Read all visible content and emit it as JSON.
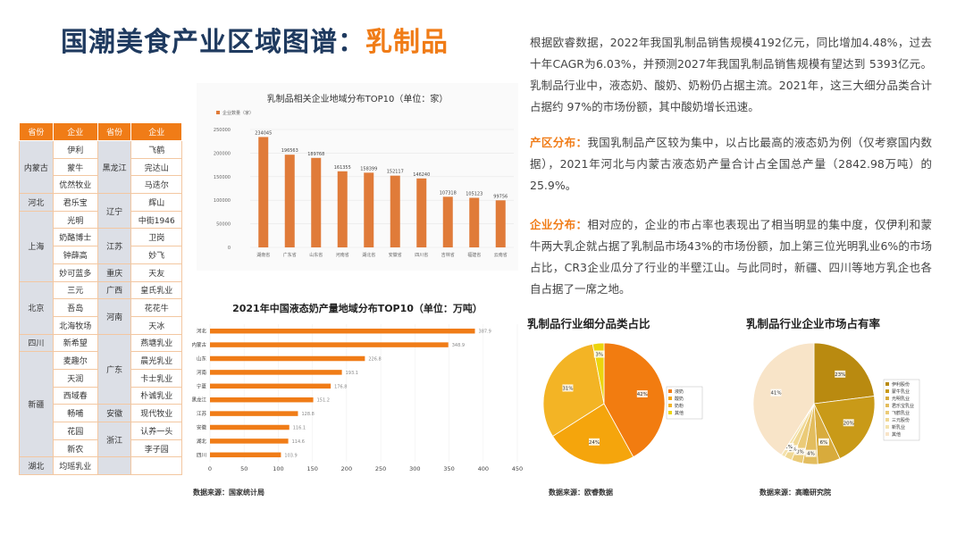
{
  "title": {
    "main": "国潮美食产业区域图谱：",
    "highlight": "乳制品"
  },
  "region_table": {
    "headers": [
      "省份",
      "企业",
      "省份",
      "企业"
    ],
    "left": [
      {
        "province": "内蒙古",
        "companies": [
          "伊利",
          "蒙牛",
          "优然牧业"
        ]
      },
      {
        "province": "河北",
        "companies": [
          "君乐宝"
        ]
      },
      {
        "province": "上海",
        "companies": [
          "光明",
          "奶酪博士",
          "钟薛高",
          "妙可蓝多"
        ]
      },
      {
        "province": "北京",
        "companies": [
          "三元",
          "吾岛",
          "北海牧场"
        ]
      },
      {
        "province": "四川",
        "companies": [
          "新希望"
        ]
      },
      {
        "province": "新疆",
        "companies": [
          "麦趣尔",
          "天润",
          "西域春",
          "畅哺",
          "花园",
          "新农"
        ]
      },
      {
        "province": "湖北",
        "companies": [
          "均瑶乳业"
        ]
      }
    ],
    "right": [
      {
        "province": "黑龙江",
        "companies": [
          "飞鹤",
          "完达山",
          "马迭尔"
        ]
      },
      {
        "province": "辽宁",
        "companies": [
          "辉山",
          "中街1946"
        ]
      },
      {
        "province": "江苏",
        "companies": [
          "卫岗",
          "妙飞"
        ]
      },
      {
        "province": "重庆",
        "companies": [
          "天友"
        ]
      },
      {
        "province": "广西",
        "companies": [
          "皇氏乳业"
        ]
      },
      {
        "province": "河南",
        "companies": [
          "花花牛",
          "天冰"
        ]
      },
      {
        "province": "广东",
        "companies": [
          "燕塘乳业",
          "晨光乳业",
          "卡士乳业",
          "朴诚乳业"
        ]
      },
      {
        "province": "安徽",
        "companies": [
          "现代牧业"
        ]
      },
      {
        "province": "浙江",
        "companies": [
          "认养一头",
          "李子园"
        ]
      },
      {
        "province": "",
        "companies": [
          ""
        ]
      }
    ]
  },
  "chart_data": [
    {
      "type": "bar",
      "title": "乳制品相关企业地域分布TOP10（单位：家）",
      "legend": "企业数量（家）",
      "categories": [
        "湖南省",
        "广东省",
        "山东省",
        "河南省",
        "湖北省",
        "安徽省",
        "四川省",
        "吉林省",
        "福建省",
        "云南省"
      ],
      "values": [
        234045,
        196563,
        189768,
        161355,
        158399,
        152117,
        146240,
        107318,
        105123,
        99756
      ],
      "ylim": [
        0,
        250000
      ],
      "yticks": [
        0,
        50000,
        100000,
        150000,
        200000,
        250000
      ],
      "color": "#e07b39"
    },
    {
      "type": "bar",
      "orientation": "horizontal",
      "title": "2021年中国液态奶产量地域分布TOP10（单位：万吨）",
      "categories": [
        "河北",
        "内蒙古",
        "山东",
        "河南",
        "宁夏",
        "黑龙江",
        "江苏",
        "安徽",
        "湖北",
        "四川"
      ],
      "values": [
        387.9,
        348.9,
        226.8,
        193.1,
        176.8,
        151.2,
        128.8,
        116.1,
        114.6,
        103.9
      ],
      "xlim": [
        0,
        450
      ],
      "xticks": [
        0,
        50,
        100,
        150,
        200,
        250,
        300,
        350,
        400,
        450
      ],
      "color": "#f07c17"
    },
    {
      "type": "pie",
      "title": "乳制品行业细分品类占比",
      "labels": [
        "液奶",
        "酸奶",
        "奶粉",
        "其他"
      ],
      "values": [
        42,
        24,
        31,
        3
      ],
      "value_labels": [
        "42%",
        "24%",
        "31%",
        "3%"
      ],
      "colors": [
        "#f27c10",
        "#f5a50c",
        "#f3b425",
        "#ecd50c"
      ]
    },
    {
      "type": "pie",
      "title": "乳制品行业企业市场占有率",
      "labels": [
        "伊利股份",
        "蒙牛乳业",
        "光明乳业",
        "君乐宝乳业",
        "飞鹤乳业",
        "三元股份",
        "新乳业",
        "其他"
      ],
      "values": [
        23,
        20,
        6,
        4,
        3,
        2,
        1,
        41
      ],
      "value_labels": [
        "23%",
        "20%",
        "6%",
        "4%",
        "3%",
        "2%",
        "1%",
        "41%"
      ],
      "colors": [
        "#b98a10",
        "#c99a18",
        "#d8ab3c",
        "#e3bd5e",
        "#ebcb78",
        "#f0d894",
        "#f4e2ad",
        "#f8e4c8"
      ]
    }
  ],
  "sources": {
    "chart2": "数据来源：国家统计局",
    "pie1": "数据来源：欧睿数据",
    "pie2": "数据来源：高瞻研究院"
  },
  "text": {
    "intro": "根据欧睿数据，2022年我国乳制品销售规模4192亿元，同比增加4.48%，过去十年CAGR为6.03%，并预测2027年我国乳制品销售规模有望达到 5393亿元。乳制品行业中，液态奶、酸奶、奶粉仍占据主流。2021年，这三大细分品类合计占据约 97%的市场份额，其中酸奶增长迅速。",
    "production_label": "产区分布：",
    "production": "我国乳制品产区较为集中，以占比最高的液态奶为例（仅考察国内数据），2021年河北与内蒙古液态奶产量合计占全国总产量（2842.98万吨）的25.9%。",
    "enterprise_label": "企业分布：",
    "enterprise": "相对应的，企业的市占率也表现出了相当明显的集中度，仅伊利和蒙牛两大乳企就占据了乳制品市场43%的市场份额，加上第三位光明乳业6%的市场占比，CR3企业瓜分了行业的半壁江山。与此同时，新疆、四川等地方乳企也各自占据了一席之地。"
  }
}
